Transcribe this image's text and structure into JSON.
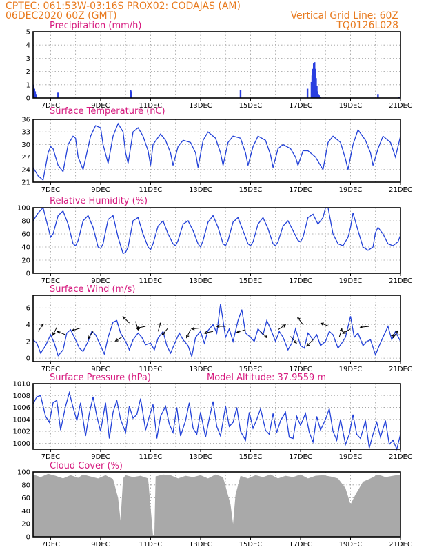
{
  "header": {
    "line1_left": "CPTEC:   061:53W-03:16S   PROX02: CODAJAS (AM)",
    "line2_left": "06DEC2020 60Z (GMT)",
    "line2_right": "Vertical Grid Line: 60Z",
    "line3_right": "TQ0126L028"
  },
  "x_axis": {
    "tick_labels": [
      "7DEC",
      "9DEC",
      "11DEC",
      "13DEC",
      "15DEC",
      "17DEC",
      "19DEC",
      "21DEC"
    ],
    "tick_days": [
      7,
      9,
      11,
      13,
      15,
      17,
      19,
      21
    ],
    "start_day": 6.3,
    "end_day": 21.0,
    "grid_every_days": 1
  },
  "colors": {
    "series": "#2241d8",
    "bars": "#2a3fe0",
    "cloud": "#a9a9a9",
    "header": "#e87a1e",
    "titles": "#d6197e"
  },
  "chart_data": [
    {
      "id": "precip",
      "type": "bar",
      "title": "Precipitation (mm/h)",
      "ylim": [
        0,
        5
      ],
      "yticks": [
        0,
        1,
        2,
        3,
        4,
        5
      ],
      "x": [
        6.32,
        6.35,
        6.38,
        6.42,
        7.3,
        10.2,
        10.23,
        14.6,
        17.28,
        17.44,
        17.47,
        17.5,
        17.53,
        17.56,
        17.59,
        17.62,
        17.65,
        17.68,
        17.71,
        17.74,
        17.78,
        20.1,
        20.95
      ],
      "values": [
        1.0,
        0.7,
        0.5,
        0.3,
        0.4,
        0.6,
        0.5,
        0.6,
        0.7,
        1.2,
        1.7,
        2.2,
        2.6,
        2.7,
        2.2,
        1.5,
        0.9,
        0.5,
        0.3,
        0.2,
        0.1,
        0.3,
        0.1
      ]
    },
    {
      "id": "temp",
      "type": "line",
      "title": "Surface Temperature (nC)",
      "ylim": [
        21,
        36
      ],
      "yticks": [
        21,
        24,
        27,
        30,
        33,
        36
      ],
      "x": [
        6.3,
        6.5,
        6.7,
        6.9,
        7.0,
        7.1,
        7.3,
        7.5,
        7.7,
        7.9,
        8.0,
        8.1,
        8.3,
        8.6,
        8.8,
        9.0,
        9.1,
        9.3,
        9.5,
        9.7,
        9.9,
        10.0,
        10.1,
        10.3,
        10.5,
        10.7,
        10.9,
        11.0,
        11.1,
        11.4,
        11.6,
        11.8,
        11.9,
        12.1,
        12.3,
        12.6,
        12.8,
        12.9,
        13.1,
        13.3,
        13.6,
        13.8,
        13.9,
        14.1,
        14.3,
        14.6,
        14.8,
        14.9,
        15.1,
        15.3,
        15.6,
        15.8,
        15.9,
        16.1,
        16.3,
        16.6,
        16.8,
        16.9,
        17.1,
        17.3,
        17.6,
        17.7,
        17.9,
        18.1,
        18.3,
        18.6,
        18.8,
        18.9,
        19.1,
        19.3,
        19.6,
        19.8,
        19.9,
        20.1,
        20.3,
        20.6,
        20.8,
        21.0
      ],
      "values": [
        24.5,
        22.5,
        21.5,
        28.0,
        29.5,
        29.0,
        25.0,
        23.5,
        30.0,
        32.0,
        31.5,
        27.0,
        24.0,
        32.0,
        34.5,
        34.0,
        30.0,
        25.5,
        32.0,
        35.0,
        33.0,
        28.0,
        25.5,
        33.0,
        34.0,
        32.0,
        28.5,
        25.0,
        30.0,
        32.5,
        31.0,
        28.0,
        25.0,
        29.5,
        31.0,
        30.5,
        28.0,
        24.5,
        31.0,
        33.0,
        31.5,
        28.0,
        25.0,
        30.5,
        32.0,
        31.5,
        28.0,
        25.0,
        29.5,
        32.0,
        31.0,
        27.5,
        24.5,
        29.0,
        30.0,
        29.0,
        27.0,
        25.0,
        28.5,
        28.5,
        27.0,
        26.0,
        24.0,
        30.5,
        32.0,
        30.5,
        26.5,
        24.0,
        30.0,
        33.5,
        31.0,
        28.0,
        25.0,
        29.0,
        32.0,
        30.5,
        27.0,
        32.0
      ]
    },
    {
      "id": "rh",
      "type": "line",
      "title": "Relative Humidity (%)",
      "ylim": [
        0,
        100
      ],
      "yticks": [
        0,
        20,
        40,
        60,
        80,
        100
      ],
      "x": [
        6.3,
        6.5,
        6.7,
        6.9,
        7.0,
        7.1,
        7.3,
        7.5,
        7.7,
        7.9,
        8.0,
        8.1,
        8.3,
        8.5,
        8.7,
        8.9,
        9.0,
        9.1,
        9.3,
        9.5,
        9.7,
        9.9,
        10.0,
        10.1,
        10.3,
        10.5,
        10.7,
        10.9,
        11.0,
        11.1,
        11.3,
        11.5,
        11.7,
        11.9,
        12.0,
        12.1,
        12.3,
        12.5,
        12.7,
        12.9,
        13.0,
        13.1,
        13.3,
        13.5,
        13.7,
        13.9,
        14.0,
        14.1,
        14.3,
        14.5,
        14.7,
        14.9,
        15.0,
        15.1,
        15.3,
        15.5,
        15.7,
        15.9,
        16.0,
        16.1,
        16.3,
        16.5,
        16.7,
        16.9,
        17.0,
        17.1,
        17.3,
        17.5,
        17.7,
        17.9,
        18.0,
        18.1,
        18.3,
        18.5,
        18.7,
        18.9,
        19.0,
        19.1,
        19.3,
        19.5,
        19.7,
        19.9,
        20.0,
        20.1,
        20.3,
        20.5,
        20.7,
        20.9,
        21.0
      ],
      "values": [
        80,
        92,
        100,
        70,
        55,
        60,
        88,
        95,
        75,
        45,
        42,
        50,
        80,
        88,
        70,
        40,
        38,
        45,
        82,
        88,
        55,
        30,
        32,
        40,
        80,
        85,
        60,
        40,
        36,
        45,
        72,
        80,
        60,
        45,
        42,
        50,
        75,
        80,
        65,
        45,
        40,
        50,
        78,
        88,
        70,
        45,
        42,
        50,
        78,
        85,
        65,
        45,
        42,
        48,
        75,
        85,
        68,
        45,
        42,
        48,
        72,
        80,
        65,
        50,
        48,
        55,
        85,
        90,
        75,
        85,
        100,
        100,
        60,
        45,
        42,
        55,
        70,
        92,
        65,
        40,
        35,
        40,
        62,
        70,
        60,
        45,
        42,
        48,
        58
      ]
    },
    {
      "id": "wind",
      "type": "line",
      "title": "Surface Wind (m/s)",
      "ylim": [
        -0.4,
        7.5
      ],
      "yticks": [
        0,
        2,
        4,
        6
      ],
      "x": [
        6.3,
        6.45,
        6.6,
        6.8,
        7.0,
        7.15,
        7.3,
        7.5,
        7.65,
        7.8,
        8.0,
        8.15,
        8.3,
        8.5,
        8.65,
        8.8,
        9.0,
        9.15,
        9.3,
        9.5,
        9.65,
        9.8,
        10.0,
        10.15,
        10.3,
        10.5,
        10.65,
        10.8,
        11.0,
        11.15,
        11.3,
        11.5,
        11.65,
        11.8,
        12.0,
        12.15,
        12.3,
        12.5,
        12.65,
        12.8,
        13.0,
        13.15,
        13.3,
        13.5,
        13.65,
        13.8,
        14.0,
        14.15,
        14.3,
        14.5,
        14.65,
        14.8,
        15.0,
        15.15,
        15.3,
        15.5,
        15.65,
        15.8,
        16.0,
        16.15,
        16.3,
        16.5,
        16.65,
        16.8,
        17.0,
        17.15,
        17.3,
        17.5,
        17.65,
        17.8,
        18.0,
        18.15,
        18.3,
        18.5,
        18.65,
        18.8,
        19.0,
        19.15,
        19.3,
        19.5,
        19.65,
        19.8,
        20.0,
        20.15,
        20.3,
        20.5,
        20.65,
        20.8,
        21.0
      ],
      "values": [
        2.2,
        1.8,
        0.6,
        1.5,
        2.8,
        1.8,
        0.3,
        1.0,
        3.0,
        3.4,
        2.2,
        1.2,
        0.8,
        2.0,
        3.2,
        2.8,
        1.5,
        0.5,
        2.5,
        4.3,
        4.5,
        3.0,
        2.0,
        1.0,
        2.2,
        3.0,
        2.5,
        1.6,
        1.8,
        1.0,
        2.4,
        3.2,
        1.5,
        0.6,
        2.0,
        3.0,
        2.2,
        1.5,
        0.2,
        2.5,
        3.2,
        1.8,
        3.3,
        4.0,
        3.0,
        6.5,
        2.5,
        3.5,
        2.0,
        4.5,
        5.8,
        3.0,
        2.5,
        2.0,
        3.5,
        2.8,
        4.5,
        3.5,
        2.0,
        3.2,
        2.5,
        1.0,
        1.8,
        3.5,
        1.5,
        1.2,
        3.0,
        2.2,
        2.8,
        1.5,
        2.0,
        3.2,
        2.8,
        1.2,
        1.8,
        2.5,
        5.0,
        2.5,
        3.0,
        1.5,
        2.0,
        2.2,
        0.4,
        1.5,
        2.5,
        3.8,
        2.2,
        3.2,
        2.0
      ],
      "arrows": [
        {
          "x": 6.5,
          "y": 3.2,
          "dx": 1,
          "dy": 1.4
        },
        {
          "x": 7.25,
          "y": 3.7,
          "dx": -0.5,
          "dy": -1
        },
        {
          "x": 7.6,
          "y": 2.8,
          "dx": -1,
          "dy": 0.4
        },
        {
          "x": 8.2,
          "y": 3.6,
          "dx": -1,
          "dy": -0.3
        },
        {
          "x": 8.7,
          "y": 3.2,
          "dx": -0.7,
          "dy": -1
        },
        {
          "x": 9.9,
          "y": 2.6,
          "dx": -1,
          "dy": -0.6
        },
        {
          "x": 10.15,
          "y": 4.2,
          "dx": -0.8,
          "dy": 0.8
        },
        {
          "x": 10.4,
          "y": 4.4,
          "dx": 0.3,
          "dy": -1
        },
        {
          "x": 10.8,
          "y": 3.8,
          "dx": -1,
          "dy": -0.2
        },
        {
          "x": 11.3,
          "y": 3.2,
          "dx": 0.3,
          "dy": 1
        },
        {
          "x": 11.7,
          "y": 3.6,
          "dx": -0.7,
          "dy": -0.8
        },
        {
          "x": 12.6,
          "y": 3.4,
          "dx": -0.5,
          "dy": -1
        },
        {
          "x": 13.0,
          "y": 3.6,
          "dx": -1,
          "dy": -0.1
        },
        {
          "x": 13.5,
          "y": 3.2,
          "dx": -1,
          "dy": -0.2
        },
        {
          "x": 14.0,
          "y": 3.8,
          "dx": -1,
          "dy": 0
        },
        {
          "x": 14.8,
          "y": 3.4,
          "dx": -1,
          "dy": -0.3
        },
        {
          "x": 15.4,
          "y": 3.2,
          "dx": 0.8,
          "dy": -0.8
        },
        {
          "x": 16.1,
          "y": 3.4,
          "dx": 0.9,
          "dy": 0.6
        },
        {
          "x": 16.6,
          "y": 2.6,
          "dx": 0.7,
          "dy": -0.8
        },
        {
          "x": 17.1,
          "y": 4.0,
          "dx": -0.6,
          "dy": 0.8
        },
        {
          "x": 17.5,
          "y": 2.2,
          "dx": -0.7,
          "dy": -0.7
        },
        {
          "x": 18.15,
          "y": 3.8,
          "dx": -0.8,
          "dy": 0.3
        },
        {
          "x": 18.55,
          "y": 2.5,
          "dx": 0.3,
          "dy": 1
        },
        {
          "x": 19.0,
          "y": 3.5,
          "dx": -1,
          "dy": -0.6
        },
        {
          "x": 19.75,
          "y": 3.8,
          "dx": -1,
          "dy": -0.1
        },
        {
          "x": 20.7,
          "y": 2.4,
          "dx": 0.6,
          "dy": 0.9
        },
        {
          "x": 21.0,
          "y": 2.8,
          "dx": -1,
          "dy": -0.1
        }
      ]
    },
    {
      "id": "pressure",
      "type": "line",
      "title": "Surface Pressure (hPa)",
      "subtitle": "Model Altitude: 37.9559 m",
      "ylim": [
        999,
        1010
      ],
      "yticks": [
        1000,
        1002,
        1004,
        1006,
        1008,
        1010
      ],
      "x": [
        6.3,
        6.45,
        6.6,
        6.8,
        6.95,
        7.1,
        7.25,
        7.4,
        7.6,
        7.75,
        7.9,
        8.05,
        8.2,
        8.4,
        8.55,
        8.7,
        8.85,
        9.0,
        9.2,
        9.35,
        9.5,
        9.65,
        9.8,
        10.0,
        10.15,
        10.3,
        10.45,
        10.6,
        10.8,
        10.95,
        11.1,
        11.25,
        11.4,
        11.6,
        11.75,
        11.9,
        12.05,
        12.2,
        12.4,
        12.55,
        12.7,
        12.85,
        13.0,
        13.2,
        13.35,
        13.5,
        13.65,
        13.8,
        14.0,
        14.15,
        14.3,
        14.45,
        14.6,
        14.8,
        14.95,
        15.1,
        15.25,
        15.4,
        15.6,
        15.75,
        15.9,
        16.05,
        16.2,
        16.4,
        16.55,
        16.7,
        16.85,
        17.0,
        17.2,
        17.35,
        17.5,
        17.65,
        17.8,
        18.0,
        18.15,
        18.3,
        18.45,
        18.6,
        18.8,
        18.95,
        19.1,
        19.25,
        19.4,
        19.6,
        19.75,
        19.9,
        20.05,
        20.2,
        20.4,
        20.55,
        20.7,
        20.85,
        21.0
      ],
      "values": [
        1006.6,
        1007.8,
        1008.0,
        1004.5,
        1003.5,
        1006.8,
        1007.2,
        1002.2,
        1006.2,
        1008.5,
        1006.0,
        1003.8,
        1006.8,
        1001.2,
        1005.0,
        1007.8,
        1004.5,
        1002.0,
        1006.8,
        1000.8,
        1005.2,
        1007.2,
        1004.0,
        1001.8,
        1006.2,
        1004.2,
        1004.8,
        1007.5,
        1002.2,
        1004.5,
        1006.5,
        1000.8,
        1004.5,
        1006.2,
        1003.2,
        1001.8,
        1006.0,
        1001.2,
        1003.8,
        1006.8,
        1002.5,
        1001.5,
        1005.2,
        1001.0,
        1004.2,
        1007.0,
        1002.8,
        1001.2,
        1006.2,
        1002.8,
        1003.5,
        1006.0,
        1002.0,
        1000.5,
        1005.2,
        1002.5,
        1004.0,
        1005.8,
        1002.2,
        1001.5,
        1005.0,
        1001.8,
        1003.8,
        1005.2,
        1001.0,
        1000.8,
        1004.5,
        1003.0,
        1005.0,
        1001.8,
        1000.2,
        1004.5,
        1002.2,
        1004.0,
        1005.8,
        1002.0,
        1000.5,
        1004.0,
        999.8,
        1001.5,
        1004.8,
        1001.5,
        1000.8,
        1003.8,
        999.2,
        1001.5,
        1003.5,
        1001.0,
        1003.8,
        999.8,
        1000.5,
        999.0,
        1001.5
      ]
    },
    {
      "id": "cloud",
      "type": "area",
      "title": "Cloud Cover (%)",
      "ylim": [
        0,
        100
      ],
      "yticks": [
        0,
        20,
        40,
        60,
        80,
        100
      ],
      "x": [
        6.3,
        6.6,
        6.9,
        7.2,
        7.5,
        7.8,
        8.1,
        8.3,
        8.6,
        8.9,
        9.2,
        9.5,
        9.7,
        9.8,
        9.9,
        10.0,
        10.3,
        10.6,
        10.9,
        11.1,
        11.15,
        11.2,
        11.5,
        11.8,
        12.1,
        12.4,
        12.7,
        13.0,
        13.3,
        13.6,
        13.9,
        14.2,
        14.3,
        14.4,
        14.6,
        14.9,
        15.2,
        15.5,
        15.8,
        16.1,
        16.4,
        16.7,
        17.0,
        17.3,
        17.6,
        17.9,
        18.2,
        18.5,
        18.8,
        19.0,
        19.2,
        19.5,
        19.8,
        20.1,
        20.4,
        20.7,
        21.0
      ],
      "values": [
        96,
        92,
        97,
        94,
        90,
        95,
        91,
        96,
        93,
        90,
        95,
        89,
        60,
        25,
        90,
        95,
        92,
        94,
        90,
        2,
        2,
        93,
        96,
        95,
        90,
        94,
        92,
        95,
        90,
        96,
        92,
        50,
        20,
        65,
        94,
        90,
        95,
        92,
        96,
        90,
        94,
        92,
        96,
        90,
        94,
        95,
        93,
        90,
        75,
        50,
        65,
        85,
        90,
        96,
        92,
        94,
        96
      ]
    }
  ]
}
